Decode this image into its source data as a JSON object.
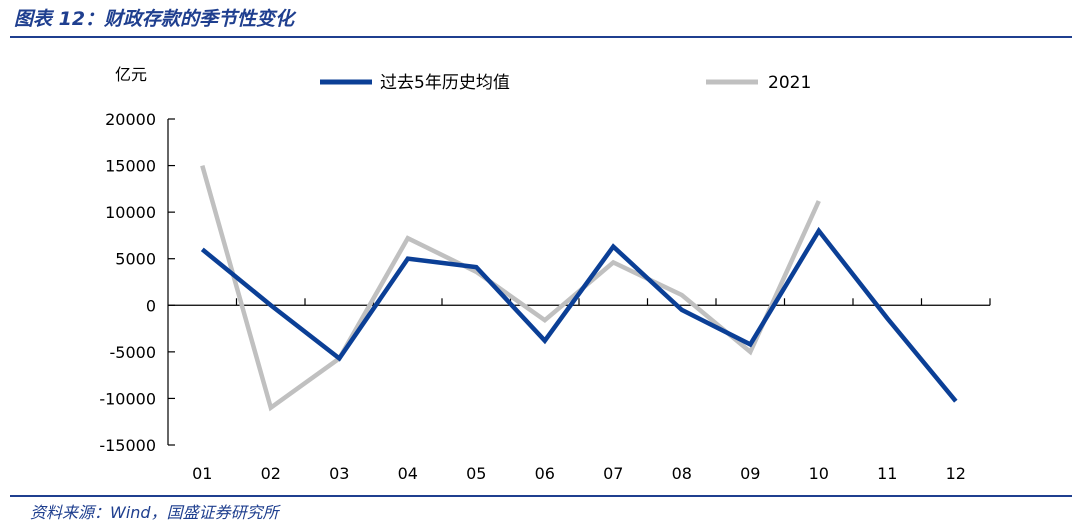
{
  "figure": {
    "title": "图表 12：财政存款的季节性变化",
    "source": "资料来源：Wind，国盛证券研究所"
  },
  "colors": {
    "accent": "#1f3f8f",
    "series_5yr": "#0b3f96",
    "series_2021": "#c0c0c0"
  },
  "chart_data": {
    "type": "line",
    "title": "",
    "xlabel": "",
    "ylabel": "亿元",
    "categories": [
      "01",
      "02",
      "03",
      "04",
      "05",
      "06",
      "07",
      "08",
      "09",
      "10",
      "11",
      "12"
    ],
    "ylim": [
      -15000,
      20000
    ],
    "yticks": [
      "20000",
      "15000",
      "10000",
      "5000",
      "0",
      "-5000",
      "-10000",
      "-15000"
    ],
    "grid": false,
    "legend_position": "top",
    "series": [
      {
        "name": "过去5年历史均值",
        "values": [
          6000,
          0,
          -5700,
          5000,
          4100,
          -3800,
          6300,
          -500,
          -4200,
          8000,
          -1400,
          -10300
        ]
      },
      {
        "name": "2021",
        "values": [
          15000,
          -11000,
          -5700,
          7200,
          3600,
          -1600,
          4600,
          1100,
          -5000,
          11200,
          null,
          null
        ]
      }
    ]
  }
}
